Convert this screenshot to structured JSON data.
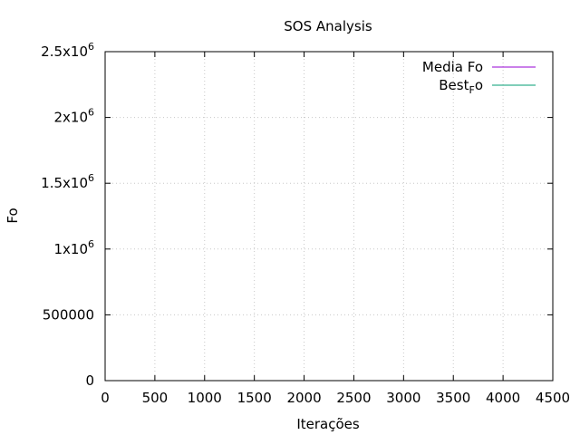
{
  "chart_data": {
    "type": "line",
    "title": "SOS Analysis",
    "xlabel": "Iterações",
    "ylabel": "Fo",
    "xlim": [
      0,
      4500
    ],
    "ylim": [
      0,
      2500000
    ],
    "grid": true,
    "legend_position": "top-right",
    "x_ticks": [
      0,
      500,
      1000,
      1500,
      2000,
      2500,
      3000,
      3500,
      4000,
      4500
    ],
    "x_tick_labels": [
      "0",
      "500",
      "1000",
      "1500",
      "2000",
      "2500",
      "3000",
      "3500",
      "4000",
      "4500"
    ],
    "y_ticks": [
      0,
      500000,
      1000000,
      1500000,
      2000000,
      2500000
    ],
    "y_tick_labels": [
      {
        "text": "0",
        "exp": ""
      },
      {
        "text": "500000",
        "exp": ""
      },
      {
        "text": "1x10",
        "exp": "6"
      },
      {
        "text": "1.5x10",
        "exp": "6"
      },
      {
        "text": "2x10",
        "exp": "6"
      },
      {
        "text": "2.5x10",
        "exp": "6"
      }
    ],
    "series": [
      {
        "name": "Media Fo",
        "name_base": "Media Fo",
        "name_sub": "",
        "color": "#9400d3",
        "x": [
          0,
          4150
        ],
        "y": [
          0,
          0
        ]
      },
      {
        "name": "Best_Fo",
        "name_base": "Best",
        "name_sub": "Fo",
        "color": "#009e73",
        "x": [
          0,
          4150
        ],
        "y": [
          0,
          0
        ]
      }
    ]
  }
}
